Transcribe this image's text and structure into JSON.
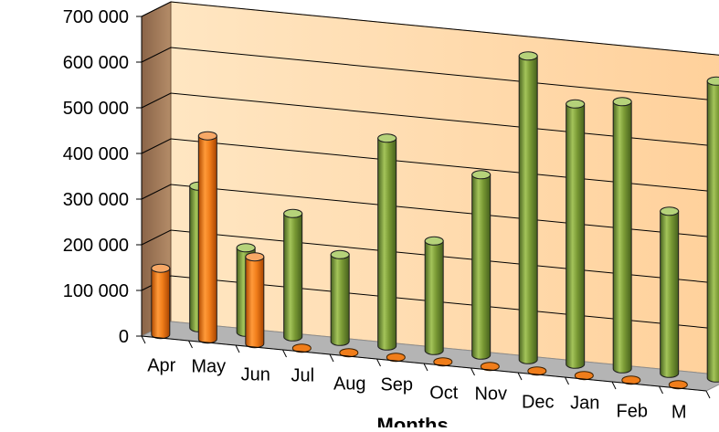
{
  "chart_data": {
    "type": "bar",
    "style": "3d-clustered-cylinder",
    "categories": [
      "Apr",
      "May",
      "Jun",
      "Jul",
      "Aug",
      "Sep",
      "Oct",
      "Nov",
      "Dec",
      "Jan",
      "Feb",
      "M"
    ],
    "series": [
      {
        "color": "#f07d1a",
        "values": [
          145000,
          445000,
          190000,
          0,
          0,
          0,
          0,
          0,
          0,
          0,
          0,
          0
        ]
      },
      {
        "color": "#7a9a35",
        "values": [
          310000,
          185000,
          270000,
          190000,
          455000,
          240000,
          395000,
          665000,
          570000,
          585000,
          355000,
          650000
        ]
      }
    ],
    "xlabel": "Months",
    "ylabel": "",
    "ylim": [
      0,
      700000
    ],
    "yticks": [
      0,
      100000,
      200000,
      300000,
      400000,
      500000,
      600000,
      700000
    ],
    "ytick_labels": [
      "0",
      "100 000",
      "200 000",
      "300 000",
      "400 000",
      "500 000",
      "600 000",
      "700 000"
    ],
    "grid": true,
    "colors": {
      "back_wall": "#ffd9a6",
      "side_wall": "#a07a58",
      "floor": "#b4b4b4"
    }
  }
}
